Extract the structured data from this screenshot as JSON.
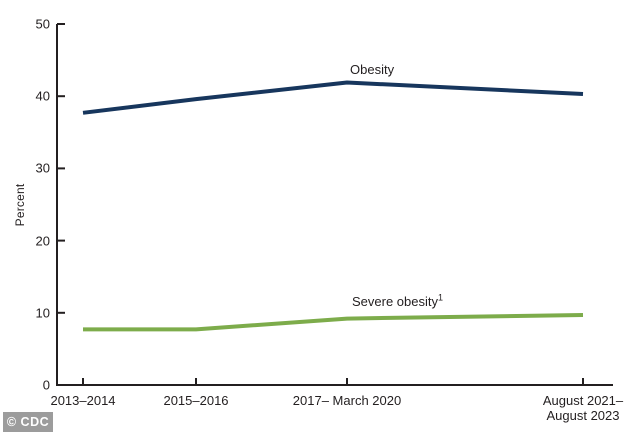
{
  "chart_data": {
    "type": "line",
    "title": "",
    "ylabel": "Percent",
    "xlabel": "",
    "ylim": [
      0,
      50
    ],
    "y_ticks": [
      0,
      10,
      20,
      30,
      40,
      50
    ],
    "categories": [
      "2013–2014",
      "2015–2016",
      "2017– March 2020",
      "August 2021–\nAugust 2023"
    ],
    "series": [
      {
        "name": "Obesity",
        "footnote_marker": "",
        "color": "#17365d",
        "values": [
          37.7,
          39.6,
          41.9,
          40.3
        ]
      },
      {
        "name": "Severe obesity",
        "footnote_marker": "1",
        "color": "#7dac4b",
        "values": [
          7.7,
          7.7,
          9.2,
          9.7
        ]
      }
    ],
    "legend_position": "inline-labels",
    "grid": false,
    "axis_color": "#231f20"
  },
  "watermark": {
    "text": "© CDC",
    "background": "#9c9c9c",
    "text_color": "#ffffff"
  }
}
